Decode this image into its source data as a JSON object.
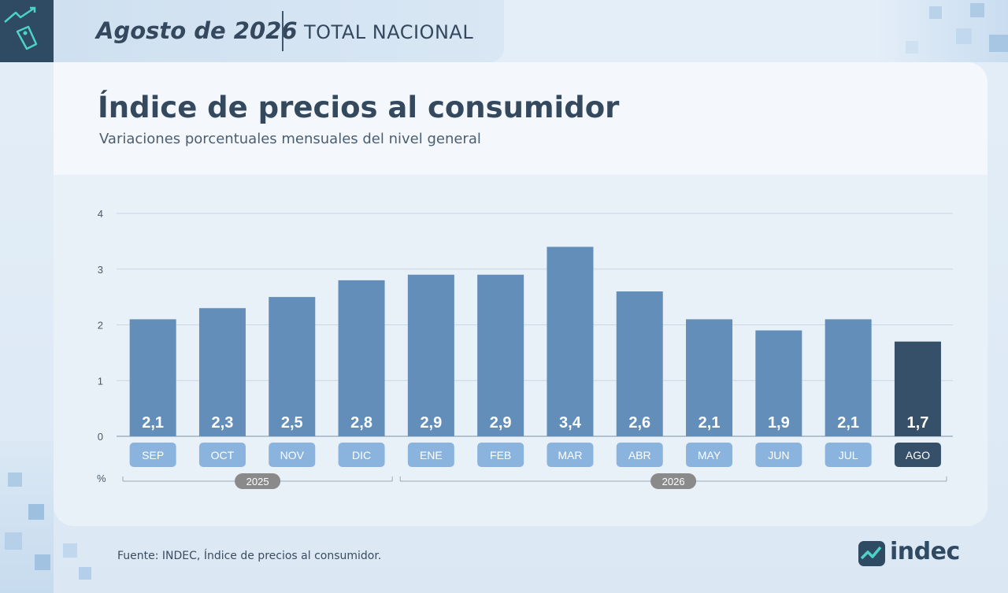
{
  "header": {
    "date": "Agosto de 2026",
    "region": "TOTAL NACIONAL"
  },
  "footer": {
    "source": "Fuente: INDEC, Índice de precios al consumidor.",
    "logo_text": "indec"
  },
  "icons": {
    "corner": "price-tag-icon",
    "logo": "indec-logo-icon"
  },
  "colors": {
    "bar": "#628eb9",
    "bar_highlight": "#36506a",
    "category_pill": "#8ab4de",
    "category_pill_highlight": "#36506a",
    "year_pill": "#8a8a8a"
  },
  "chart_data": {
    "type": "bar",
    "title": "Índice de precios al consumidor",
    "subtitle": "Variaciones porcentuales mensuales del nivel general",
    "categories": [
      "SEP",
      "OCT",
      "NOV",
      "DIC",
      "ENE",
      "FEB",
      "MAR",
      "ABR",
      "MAY",
      "JUN",
      "JUL",
      "AGO"
    ],
    "value_labels": [
      "2,1",
      "2,3",
      "2,5",
      "2,8",
      "2,9",
      "2,9",
      "3,4",
      "2,6",
      "2,1",
      "1,9",
      "2,1",
      "1,7"
    ],
    "values": [
      2.1,
      2.3,
      2.5,
      2.8,
      2.9,
      2.9,
      3.4,
      2.6,
      2.1,
      1.9,
      2.1,
      1.7
    ],
    "highlight_index": 11,
    "ylabel": "%",
    "ylim": [
      0,
      4
    ],
    "yticks": [
      0,
      1,
      2,
      3,
      4
    ],
    "grid": true,
    "year_groups": [
      {
        "label": "2025",
        "start": 0,
        "end": 3
      },
      {
        "label": "2026",
        "start": 4,
        "end": 11
      }
    ]
  }
}
